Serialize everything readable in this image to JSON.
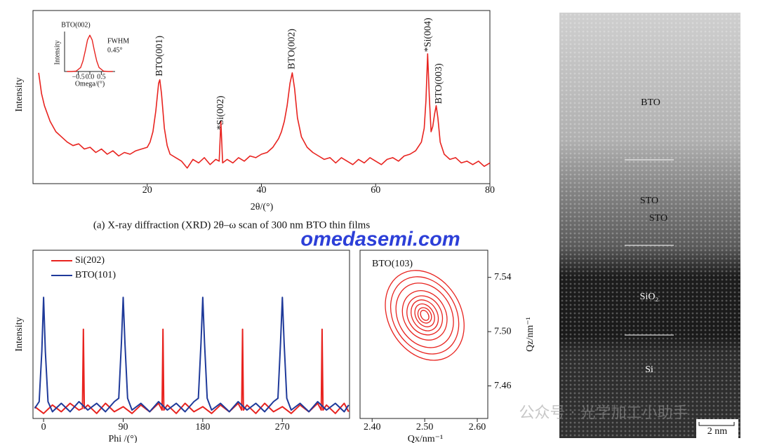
{
  "chart_data": [
    {
      "type": "line",
      "caption": "(a) X-ray diffraction (XRD) 2θ–ω scan of 300 nm BTO thin films",
      "xlabel": "2θ/(°)",
      "ylabel": "Intensity",
      "color": "#e8231f",
      "xlim": [
        0,
        80
      ],
      "xticks": [
        20,
        40,
        60,
        80
      ],
      "ylim": [
        0,
        100
      ],
      "yticks": [],
      "x": [
        1,
        1.5,
        2,
        3,
        4,
        5,
        6,
        7,
        8,
        9,
        10,
        11,
        12,
        13,
        14,
        15,
        16,
        17,
        18,
        19,
        20,
        20.5,
        21,
        21.5,
        22,
        22.2,
        22.5,
        23,
        23.5,
        24,
        25,
        26,
        27,
        28,
        29,
        30,
        31,
        32,
        32.6,
        32.9,
        33.2,
        34,
        35,
        36,
        37,
        38,
        39,
        40,
        41,
        42,
        43,
        43.5,
        44,
        44.5,
        45,
        45.4,
        45.8,
        46.3,
        47,
        48,
        49,
        50,
        51,
        52,
        53,
        54,
        55,
        56,
        57,
        58,
        59,
        60,
        61,
        62,
        63,
        64,
        65,
        66,
        67,
        68,
        68.5,
        68.8,
        69.1,
        69.4,
        69.7,
        70,
        70.3,
        70.6,
        70.9,
        71.3,
        72,
        73,
        74,
        75,
        76,
        77,
        78,
        79,
        80
      ],
      "values": [
        64,
        52,
        45,
        36,
        30,
        27,
        24,
        22,
        23,
        20,
        21,
        18,
        20,
        17,
        19,
        16,
        18,
        17,
        19,
        20,
        21,
        24,
        30,
        42,
        58,
        60,
        52,
        32,
        22,
        17,
        15,
        13,
        9,
        14,
        12,
        15,
        11,
        14,
        13,
        36,
        12,
        14,
        12,
        15,
        13,
        16,
        15,
        17,
        18,
        21,
        26,
        30,
        36,
        45,
        58,
        64,
        55,
        38,
        27,
        21,
        18,
        16,
        14,
        15,
        12,
        15,
        13,
        11,
        14,
        12,
        15,
        13,
        11,
        14,
        15,
        13,
        16,
        17,
        19,
        24,
        32,
        48,
        75,
        50,
        30,
        33,
        40,
        45,
        38,
        24,
        17,
        14,
        15,
        12,
        13,
        11,
        13,
        10,
        12
      ],
      "annotations": [
        {
          "text": "BTO(001)",
          "x": 22.2,
          "y": 62
        },
        {
          "text": "*Si(002)",
          "x": 32.9,
          "y": 31
        },
        {
          "text": "BTO(002)",
          "x": 45.4,
          "y": 66
        },
        {
          "text": "*Si(004)",
          "x": 69.2,
          "y": 76
        },
        {
          "text": "BTO(003)",
          "x": 71.1,
          "y": 46
        }
      ]
    },
    {
      "type": "line",
      "title": "BTO(002)",
      "xlabel": "Omega/(°)",
      "ylabel": "Intensity",
      "color": "#e8231f",
      "notes": [
        "FWHM",
        "0.45°"
      ],
      "xlim": [
        -1.1,
        1.1
      ],
      "xticks": [
        {
          "value": -0.5,
          "label": "−0.5"
        },
        {
          "value": 0,
          "label": "0.0"
        },
        0.5
      ],
      "ylim": [
        0,
        110
      ],
      "yticks": [],
      "x": [
        -1,
        -0.8,
        -0.6,
        -0.4,
        -0.3,
        -0.2,
        -0.1,
        0,
        0.1,
        0.2,
        0.3,
        0.4,
        0.6,
        0.8,
        1
      ],
      "values": [
        0,
        0,
        1,
        11,
        29,
        57,
        87,
        100,
        87,
        57,
        29,
        11,
        1,
        0,
        0
      ]
    },
    {
      "type": "line",
      "xlabel": "Phi /(°)",
      "ylabel": "Intensity",
      "legend": "upper left",
      "xlim": [
        -12,
        346
      ],
      "xticks": [
        0,
        90,
        180,
        270
      ],
      "ylim": [
        0,
        100
      ],
      "yticks": [],
      "series": [
        {
          "name": "Si(202)",
          "color": "#e8231f",
          "x": [
            -10,
            0,
            10,
            20,
            30,
            40,
            44,
            45,
            46,
            50,
            60,
            70,
            80,
            90,
            100,
            110,
            120,
            130,
            134,
            135,
            136,
            140,
            150,
            160,
            170,
            180,
            190,
            200,
            210,
            220,
            224,
            225,
            226,
            230,
            240,
            250,
            260,
            270,
            280,
            290,
            300,
            310,
            314,
            315,
            316,
            320,
            330,
            340,
            345
          ],
          "values": [
            7,
            3,
            8,
            4,
            9,
            5,
            6,
            53,
            6,
            8,
            3,
            9,
            4,
            7,
            3,
            8,
            4,
            9,
            5,
            53,
            5,
            8,
            3,
            9,
            4,
            7,
            3,
            8,
            4,
            9,
            5,
            53,
            5,
            8,
            3,
            9,
            4,
            7,
            3,
            8,
            4,
            9,
            5,
            53,
            5,
            8,
            3,
            9,
            4
          ]
        },
        {
          "name": "BTO(101)",
          "color": "#1f3a9a",
          "x": [
            -10,
            -5,
            -2,
            0,
            2,
            5,
            10,
            20,
            30,
            40,
            50,
            60,
            70,
            80,
            85,
            88,
            90,
            92,
            95,
            100,
            110,
            120,
            130,
            140,
            150,
            160,
            170,
            175,
            178,
            180,
            182,
            185,
            190,
            200,
            210,
            220,
            230,
            240,
            250,
            260,
            265,
            268,
            270,
            272,
            275,
            280,
            290,
            300,
            310,
            320,
            330,
            340,
            345
          ],
          "values": [
            6,
            10,
            40,
            72,
            40,
            10,
            4,
            9,
            4,
            10,
            5,
            9,
            4,
            10,
            12,
            45,
            72,
            45,
            12,
            5,
            9,
            4,
            10,
            5,
            9,
            4,
            10,
            12,
            45,
            72,
            45,
            12,
            5,
            9,
            4,
            10,
            5,
            9,
            4,
            10,
            12,
            45,
            72,
            45,
            12,
            5,
            9,
            4,
            10,
            5,
            9,
            4,
            8
          ]
        }
      ]
    },
    {
      "type": "contour",
      "title": "BTO(103)",
      "xlabel": "Qx/nm⁻¹",
      "ylabel": "Qz/nm⁻¹",
      "color": "#e8231f",
      "xlim": [
        2.377,
        2.62
      ],
      "xticks": [
        {
          "value": 2.4,
          "label": "2.40"
        },
        {
          "value": 2.5,
          "label": "2.50"
        },
        {
          "value": 2.6,
          "label": "2.60"
        }
      ],
      "ylim": [
        7.436,
        7.56
      ],
      "yticks": [
        7.46,
        {
          "value": 7.5,
          "label": "7.50"
        },
        7.54
      ],
      "center": [
        2.5,
        7.512
      ],
      "rotation": -30,
      "contours": [
        {
          "rx": 0.069,
          "ry": 0.035
        },
        {
          "rx": 0.06,
          "ry": 0.03
        },
        {
          "rx": 0.051,
          "ry": 0.025
        },
        {
          "rx": 0.04,
          "ry": 0.019
        },
        {
          "rx": 0.032,
          "ry": 0.015
        },
        {
          "rx": 0.024,
          "ry": 0.012
        },
        {
          "rx": 0.017,
          "ry": 0.009
        },
        {
          "rx": 0.012,
          "ry": 0.006
        },
        {
          "rx": 0.007,
          "ry": 0.004
        }
      ]
    }
  ],
  "image": {
    "labels": [
      "BTO",
      "STO",
      "STO",
      "SiO₂",
      "Si"
    ],
    "scale_bar": "2 nm"
  },
  "watermark": "omedasemi.com",
  "watermark_cn": "公众号 · 光学加工小助手"
}
